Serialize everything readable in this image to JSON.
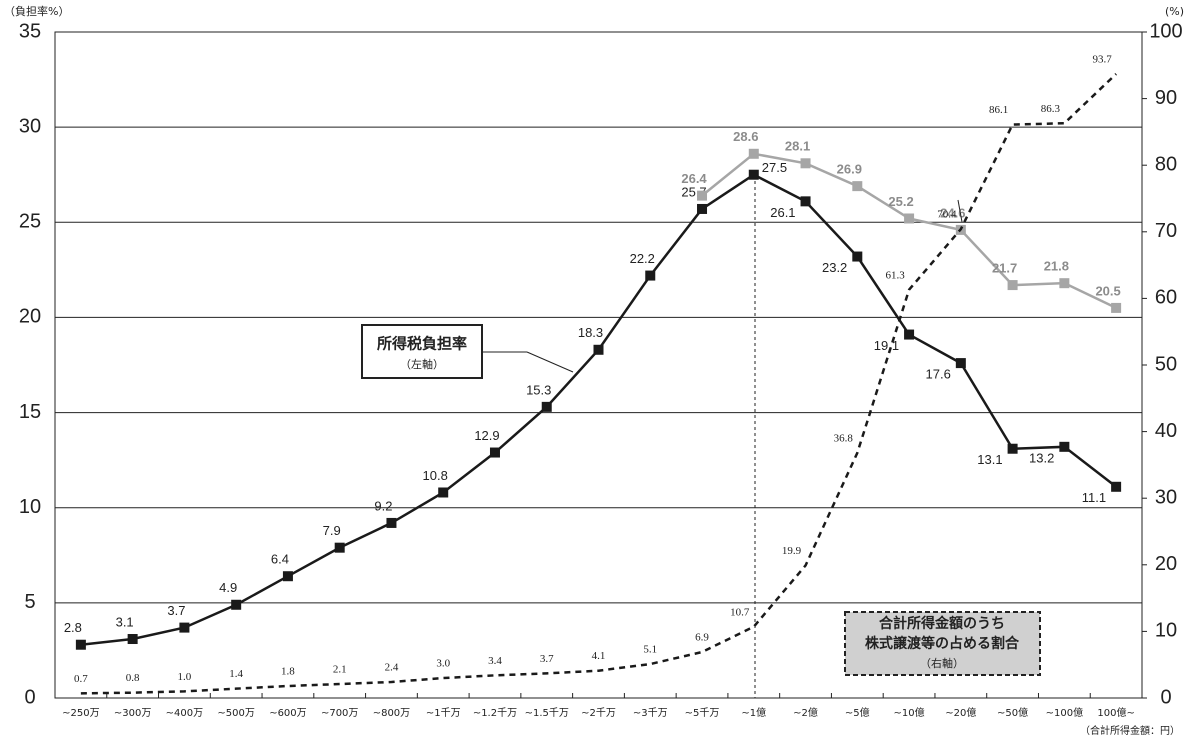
{
  "chart_data": {
    "type": "line",
    "y_label": "（負担率%）",
    "y2_label": "(%)",
    "x_label": "（合計所得金額：円）",
    "categories": [
      "~250万",
      "~300万",
      "~400万",
      "~500万",
      "~600万",
      "~700万",
      "~800万",
      "~1千万",
      "~1.2千万",
      "~1.5千万",
      "~2千万",
      "~3千万",
      "~5千万",
      "~1億",
      "~2億",
      "~5億",
      "~10億",
      "~20億",
      "~50億",
      "~100億",
      "100億~"
    ],
    "ylim": [
      0,
      35
    ],
    "yticks": [
      0,
      5,
      10,
      15,
      20,
      25,
      30,
      35
    ],
    "y2lim": [
      0,
      100
    ],
    "y2ticks": [
      0,
      10,
      20,
      30,
      40,
      50,
      60,
      70,
      80,
      90,
      100
    ],
    "grid": true,
    "series": [
      {
        "name": "所得税負担率",
        "note": "（左軸）",
        "color": "#1a1a1a",
        "style": "solid",
        "values": [
          2.8,
          3.1,
          3.7,
          4.9,
          6.4,
          7.9,
          9.2,
          10.8,
          12.9,
          15.3,
          18.3,
          22.2,
          25.7,
          27.5,
          26.1,
          23.2,
          19.1,
          17.6,
          13.1,
          13.2,
          11.1
        ]
      },
      {
        "color": "#a6a6a6",
        "style": "solid",
        "values": [
          null,
          null,
          null,
          null,
          null,
          null,
          null,
          null,
          null,
          null,
          null,
          null,
          26.4,
          28.6,
          28.1,
          26.9,
          25.2,
          24.6,
          21.7,
          21.8,
          20.5
        ]
      },
      {
        "name": "合計所得金額のうち\n株式譲渡等の占める割合",
        "note": "（右軸）",
        "color": "#1a1a1a",
        "style": "dashed",
        "axis": "y2",
        "values": [
          0.7,
          0.8,
          1.0,
          1.4,
          1.8,
          2.1,
          2.4,
          3.0,
          3.4,
          3.7,
          4.1,
          5.1,
          6.9,
          10.7,
          19.9,
          36.8,
          61.3,
          70.4,
          86.1,
          86.3,
          93.7
        ],
        "value_labels": [
          "0.7",
          "0.8",
          "1.0",
          "1.4",
          "1.8",
          "2.1",
          "2.4",
          "3.0",
          "3.4",
          "3.7",
          "4.1",
          "5.1",
          "6.9",
          "10.7",
          "19.9",
          "36.8",
          "61.3",
          "70.4",
          "86.1",
          "86.3",
          "93.7"
        ]
      }
    ]
  }
}
